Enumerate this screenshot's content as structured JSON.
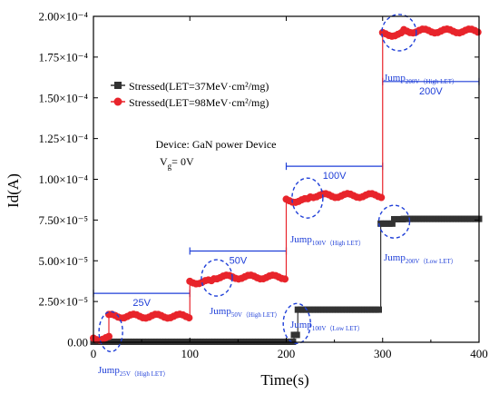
{
  "chart_data": {
    "type": "scatter",
    "xlabel": "Time(s)",
    "ylabel": "Id(A)",
    "xlim": [
      0,
      400
    ],
    "ylim": [
      0,
      0.0002
    ],
    "x_ticks": [
      0,
      100,
      200,
      300,
      400
    ],
    "x_tick_labels": [
      "0",
      "100",
      "200",
      "300",
      "400"
    ],
    "y_ticks": [
      0,
      2.5e-05,
      5e-05,
      7.5e-05,
      0.0001,
      0.000125,
      0.00015,
      0.000175,
      0.0002
    ],
    "y_tick_labels": [
      "0.00",
      "2.50×10⁻⁵",
      "5.00×10⁻⁵",
      "7.50×10⁻⁵",
      "1.00×10⁻⁴",
      "1.25×10⁻⁴",
      "1.50×10⁻⁴",
      "1.75×10⁻⁴",
      "2.00×10⁻⁴"
    ],
    "legend": {
      "placement": "top-left"
    },
    "series": [
      {
        "name": "Stressed(LET=37MeV·cm²/mg)",
        "color": "#333333",
        "marker": "square",
        "segments": [
          {
            "x0": 0,
            "x1": 208,
            "y": 3e-07
          },
          {
            "x0": 208,
            "x1": 212,
            "y": 4.5e-06
          },
          {
            "x0": 212,
            "x1": 298,
            "y": 2e-05
          },
          {
            "x0": 298,
            "x1": 312,
            "y": 7.28e-05
          },
          {
            "x0": 312,
            "x1": 322,
            "y": 7.55e-05
          },
          {
            "x0": 322,
            "x1": 400,
            "y": 7.57e-05
          }
        ]
      },
      {
        "name": "Stressed(LET=98MeV·cm²/mg)",
        "color": "#e8242b",
        "marker": "circle",
        "segments": [
          {
            "x0": 0,
            "x1": 16,
            "y": 2.5e-06
          },
          {
            "x0": 16,
            "x1": 100,
            "y": 1.6e-05
          },
          {
            "x0": 100,
            "x1": 125,
            "y": 3.7e-05
          },
          {
            "x0": 125,
            "x1": 200,
            "y": 4e-05
          },
          {
            "x0": 200,
            "x1": 225,
            "y": 8.7e-05
          },
          {
            "x0": 225,
            "x1": 300,
            "y": 9e-05
          },
          {
            "x0": 300,
            "x1": 322,
            "y": 0.000189
          },
          {
            "x0": 322,
            "x1": 400,
            "y": 0.000191
          }
        ]
      }
    ],
    "bias_steps": [
      {
        "label": "25V",
        "x0": 0,
        "x1": 100,
        "y": 3e-05
      },
      {
        "label": "50V",
        "x0": 100,
        "x1": 200,
        "y": 5.6e-05
      },
      {
        "label": "100V",
        "x0": 200,
        "x1": 300,
        "y": 0.000108
      },
      {
        "label": "200V",
        "x0": 300,
        "x1": 400,
        "y": 0.00016
      }
    ],
    "jump_annotations": [
      {
        "main": "Jump",
        "sub": "25V（High LET）",
        "x": 18,
        "y": 6.5e-06
      },
      {
        "main": "Jump",
        "sub": "50V（High LET）",
        "x": 128,
        "y": 3.95e-05
      },
      {
        "main": "Jump",
        "sub": "100V（High LET）",
        "x": 222,
        "y": 8.85e-05
      },
      {
        "main": "Jump",
        "sub": "200V（High LET）",
        "x": 317,
        "y": 0.00019
      },
      {
        "main": "Jump",
        "sub": "100V（Low LET）",
        "x": 211,
        "y": 1.15e-05
      },
      {
        "main": "Jump",
        "sub": "200V（Low LET）",
        "x": 312,
        "y": 7.4e-05
      }
    ],
    "device_text": {
      "line1": "Device: GaN power Device",
      "line2_main": "V",
      "line2_sub": "g",
      "line2_rest": "= 0V"
    }
  }
}
